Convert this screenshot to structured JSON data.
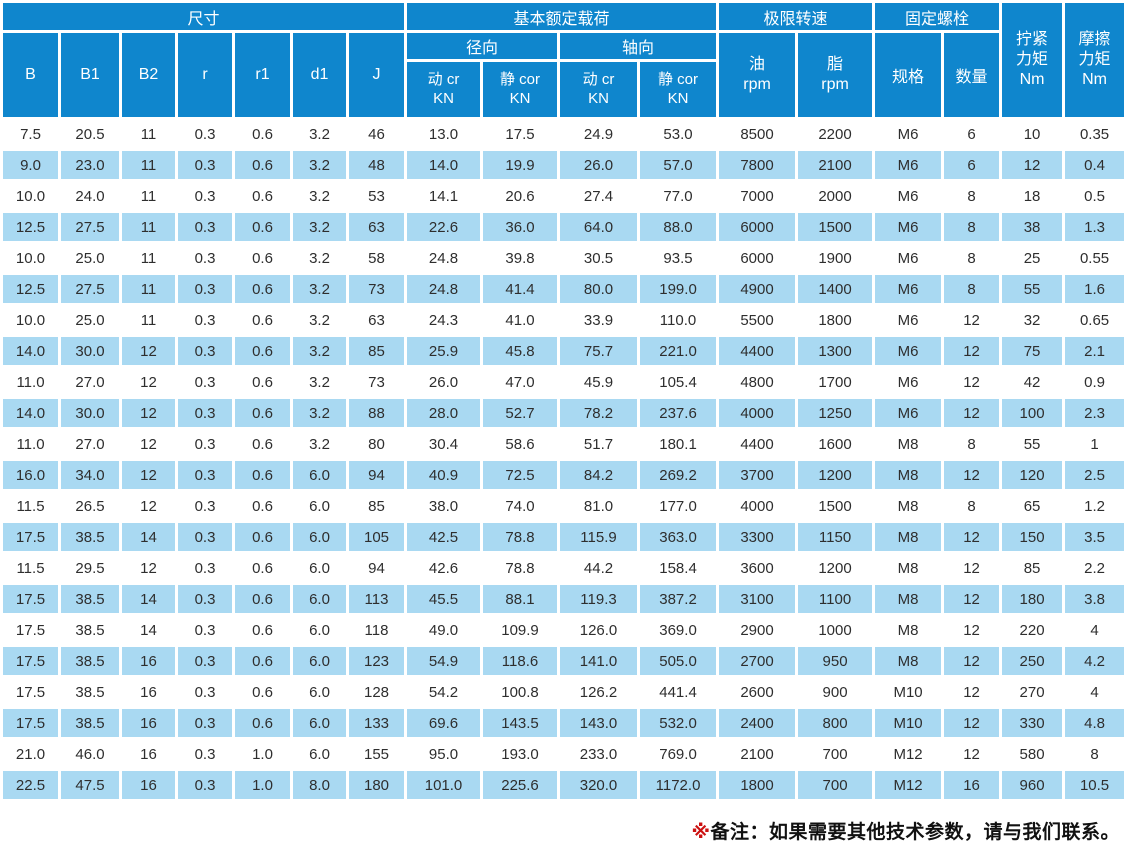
{
  "colors": {
    "header_blue": "#0f86cd",
    "row_blue": "#a9d9f2",
    "text_dark": "#2e2e2e",
    "note_red": "#cc1111"
  },
  "header": {
    "groups": {
      "dimensions": "尺寸",
      "load": "基本额定载荷",
      "speed": "极限转速",
      "bolt": "固定螺栓"
    },
    "cols": {
      "b": "B",
      "b1": "B1",
      "b2": "B2",
      "r": "r",
      "r1": "r1",
      "d1": "d1",
      "j": "J"
    },
    "radial": "径向",
    "axial": "轴向",
    "dyn": "动 cr\nKN",
    "sta": "静 cor\nKN",
    "oil": "油\nrpm",
    "grease": "脂\nrpm",
    "spec": "规格",
    "qty": "数量",
    "tighten": "拧紧\n力矩\nNm",
    "friction": "摩擦\n力矩\nNm"
  },
  "table": {
    "rows": [
      [
        "7.5",
        "20.5",
        "11",
        "0.3",
        "0.6",
        "3.2",
        "46",
        "13.0",
        "17.5",
        "24.9",
        "53.0",
        "8500",
        "2200",
        "M6",
        "6",
        "10",
        "0.35"
      ],
      [
        "9.0",
        "23.0",
        "11",
        "0.3",
        "0.6",
        "3.2",
        "48",
        "14.0",
        "19.9",
        "26.0",
        "57.0",
        "7800",
        "2100",
        "M6",
        "6",
        "12",
        "0.4"
      ],
      [
        "10.0",
        "24.0",
        "11",
        "0.3",
        "0.6",
        "3.2",
        "53",
        "14.1",
        "20.6",
        "27.4",
        "77.0",
        "7000",
        "2000",
        "M6",
        "8",
        "18",
        "0.5"
      ],
      [
        "12.5",
        "27.5",
        "11",
        "0.3",
        "0.6",
        "3.2",
        "63",
        "22.6",
        "36.0",
        "64.0",
        "88.0",
        "6000",
        "1500",
        "M6",
        "8",
        "38",
        "1.3"
      ],
      [
        "10.0",
        "25.0",
        "11",
        "0.3",
        "0.6",
        "3.2",
        "58",
        "24.8",
        "39.8",
        "30.5",
        "93.5",
        "6000",
        "1900",
        "M6",
        "8",
        "25",
        "0.55"
      ],
      [
        "12.5",
        "27.5",
        "11",
        "0.3",
        "0.6",
        "3.2",
        "73",
        "24.8",
        "41.4",
        "80.0",
        "199.0",
        "4900",
        "1400",
        "M6",
        "8",
        "55",
        "1.6"
      ],
      [
        "10.0",
        "25.0",
        "11",
        "0.3",
        "0.6",
        "3.2",
        "63",
        "24.3",
        "41.0",
        "33.9",
        "110.0",
        "5500",
        "1800",
        "M6",
        "12",
        "32",
        "0.65"
      ],
      [
        "14.0",
        "30.0",
        "12",
        "0.3",
        "0.6",
        "3.2",
        "85",
        "25.9",
        "45.8",
        "75.7",
        "221.0",
        "4400",
        "1300",
        "M6",
        "12",
        "75",
        "2.1"
      ],
      [
        "11.0",
        "27.0",
        "12",
        "0.3",
        "0.6",
        "3.2",
        "73",
        "26.0",
        "47.0",
        "45.9",
        "105.4",
        "4800",
        "1700",
        "M6",
        "12",
        "42",
        "0.9"
      ],
      [
        "14.0",
        "30.0",
        "12",
        "0.3",
        "0.6",
        "3.2",
        "88",
        "28.0",
        "52.7",
        "78.2",
        "237.6",
        "4000",
        "1250",
        "M6",
        "12",
        "100",
        "2.3"
      ],
      [
        "11.0",
        "27.0",
        "12",
        "0.3",
        "0.6",
        "3.2",
        "80",
        "30.4",
        "58.6",
        "51.7",
        "180.1",
        "4400",
        "1600",
        "M8",
        "8",
        "55",
        "1"
      ],
      [
        "16.0",
        "34.0",
        "12",
        "0.3",
        "0.6",
        "6.0",
        "94",
        "40.9",
        "72.5",
        "84.2",
        "269.2",
        "3700",
        "1200",
        "M8",
        "12",
        "120",
        "2.5"
      ],
      [
        "11.5",
        "26.5",
        "12",
        "0.3",
        "0.6",
        "6.0",
        "85",
        "38.0",
        "74.0",
        "81.0",
        "177.0",
        "4000",
        "1500",
        "M8",
        "8",
        "65",
        "1.2"
      ],
      [
        "17.5",
        "38.5",
        "14",
        "0.3",
        "0.6",
        "6.0",
        "105",
        "42.5",
        "78.8",
        "115.9",
        "363.0",
        "3300",
        "1150",
        "M8",
        "12",
        "150",
        "3.5"
      ],
      [
        "11.5",
        "29.5",
        "12",
        "0.3",
        "0.6",
        "6.0",
        "94",
        "42.6",
        "78.8",
        "44.2",
        "158.4",
        "3600",
        "1200",
        "M8",
        "12",
        "85",
        "2.2"
      ],
      [
        "17.5",
        "38.5",
        "14",
        "0.3",
        "0.6",
        "6.0",
        "113",
        "45.5",
        "88.1",
        "119.3",
        "387.2",
        "3100",
        "1100",
        "M8",
        "12",
        "180",
        "3.8"
      ],
      [
        "17.5",
        "38.5",
        "14",
        "0.3",
        "0.6",
        "6.0",
        "118",
        "49.0",
        "109.9",
        "126.0",
        "369.0",
        "2900",
        "1000",
        "M8",
        "12",
        "220",
        "4"
      ],
      [
        "17.5",
        "38.5",
        "16",
        "0.3",
        "0.6",
        "6.0",
        "123",
        "54.9",
        "118.6",
        "141.0",
        "505.0",
        "2700",
        "950",
        "M8",
        "12",
        "250",
        "4.2"
      ],
      [
        "17.5",
        "38.5",
        "16",
        "0.3",
        "0.6",
        "6.0",
        "128",
        "54.2",
        "100.8",
        "126.2",
        "441.4",
        "2600",
        "900",
        "M10",
        "12",
        "270",
        "4"
      ],
      [
        "17.5",
        "38.5",
        "16",
        "0.3",
        "0.6",
        "6.0",
        "133",
        "69.6",
        "143.5",
        "143.0",
        "532.0",
        "2400",
        "800",
        "M10",
        "12",
        "330",
        "4.8"
      ],
      [
        "21.0",
        "46.0",
        "16",
        "0.3",
        "1.0",
        "6.0",
        "155",
        "95.0",
        "193.0",
        "233.0",
        "769.0",
        "2100",
        "700",
        "M12",
        "12",
        "580",
        "8"
      ],
      [
        "22.5",
        "47.5",
        "16",
        "0.3",
        "1.0",
        "8.0",
        "180",
        "101.0",
        "225.6",
        "320.0",
        "1172.0",
        "1800",
        "700",
        "M12",
        "16",
        "960",
        "10.5"
      ]
    ]
  },
  "footer": {
    "marker": "※",
    "text": "备注：如果需要其他技术参数，请与我们联系。"
  }
}
